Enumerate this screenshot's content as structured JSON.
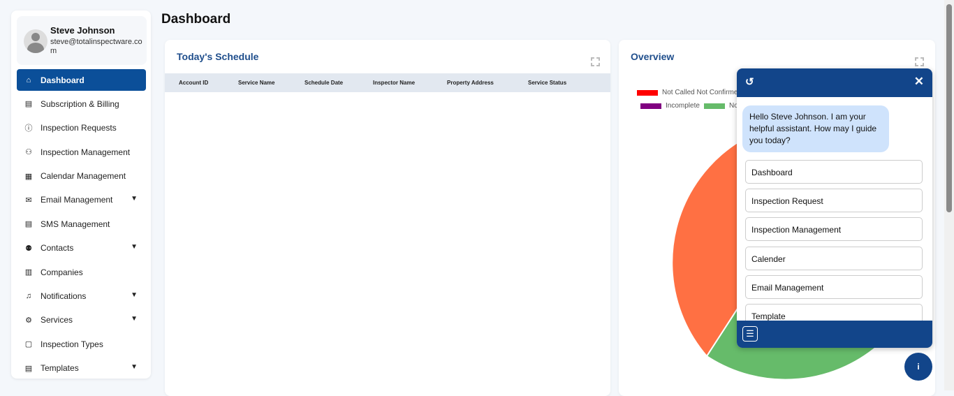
{
  "user": {
    "name": "Steve Johnson",
    "email": "steve@totalinspectware.com"
  },
  "sidebar": {
    "items": [
      {
        "label": "Dashboard",
        "icon": "home-icon",
        "active": true,
        "expandable": false
      },
      {
        "label": "Subscription & Billing",
        "icon": "document-icon",
        "expandable": false
      },
      {
        "label": "Inspection Requests",
        "icon": "info-icon",
        "expandable": false
      },
      {
        "label": "Inspection Management",
        "icon": "users-icon",
        "expandable": false
      },
      {
        "label": "Calendar Management",
        "icon": "calendar-icon",
        "expandable": false
      },
      {
        "label": "Email Management",
        "icon": "mail-icon",
        "expandable": true
      },
      {
        "label": "SMS Management",
        "icon": "document-icon",
        "expandable": false
      },
      {
        "label": "Contacts",
        "icon": "contacts-icon",
        "expandable": true
      },
      {
        "label": "Companies",
        "icon": "building-icon",
        "expandable": false
      },
      {
        "label": "Notifications",
        "icon": "bell-icon",
        "expandable": true
      },
      {
        "label": "Services",
        "icon": "gear-icon",
        "expandable": true
      },
      {
        "label": "Inspection Types",
        "icon": "chat-icon",
        "expandable": false
      },
      {
        "label": "Templates",
        "icon": "template-icon",
        "expandable": true
      }
    ]
  },
  "page": {
    "title": "Dashboard"
  },
  "schedule": {
    "title": "Today's Schedule",
    "columns": [
      "Account ID",
      "Service Name",
      "Schedule Date",
      "Inspector Name",
      "Property Address",
      "Service Status"
    ]
  },
  "overview": {
    "title": "Overview",
    "legend": [
      {
        "label": "Not Called Not Confirmed",
        "color": "#ff0000"
      },
      {
        "label": "Incomplete",
        "color": "#800080"
      },
      {
        "label": "No",
        "color": "#66bb6a"
      }
    ],
    "slice_colors": [
      "#ff7043",
      "#66bb6a"
    ]
  },
  "chat": {
    "greeting": "Hello Steve Johnson. I am your helpful assistant. How may I guide you today?",
    "options": [
      "Dashboard",
      "Inspection Request",
      "Inspection Management",
      "Calender",
      "Email Management",
      "Template"
    ]
  },
  "colors": {
    "primary": "#0b4f99",
    "chat_header": "#12458a"
  }
}
